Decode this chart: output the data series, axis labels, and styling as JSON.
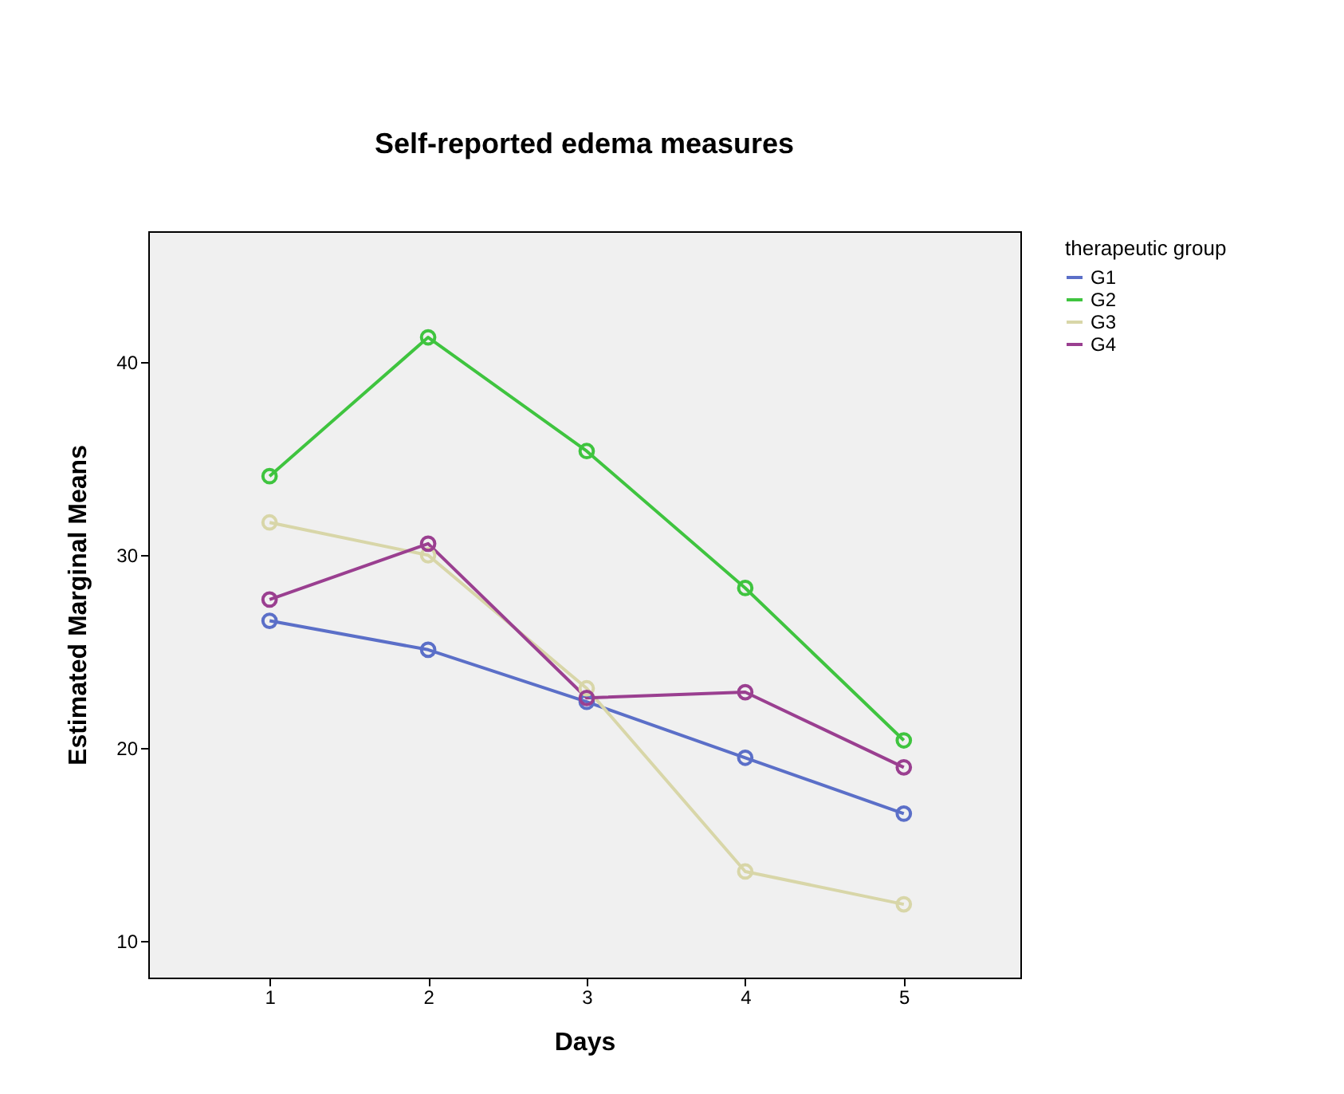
{
  "chart_data": {
    "type": "line",
    "title": "Self-reported edema measures",
    "xlabel": "Days",
    "ylabel": "Estimated Marginal Means",
    "legend_title": "therapeutic group",
    "categories": [
      "1",
      "2",
      "3",
      "4",
      "5"
    ],
    "series": [
      {
        "name": "G1",
        "color": "#5b6fc8",
        "values": [
          26.6,
          25.1,
          22.4,
          19.5,
          16.6
        ]
      },
      {
        "name": "G2",
        "color": "#3fc43f",
        "values": [
          34.1,
          41.3,
          35.4,
          28.3,
          20.4
        ]
      },
      {
        "name": "G3",
        "color": "#d8d6a8",
        "values": [
          31.7,
          30.0,
          23.1,
          13.6,
          11.9
        ]
      },
      {
        "name": "G4",
        "color": "#9a3f90",
        "values": [
          27.7,
          30.6,
          22.6,
          22.9,
          19.0
        ]
      }
    ],
    "ylim": [
      8.1,
      46.8
    ],
    "yticks": [
      10,
      20,
      30,
      40
    ],
    "grid": false,
    "legend": "top right",
    "marker": "circle",
    "line_style": "solid"
  }
}
